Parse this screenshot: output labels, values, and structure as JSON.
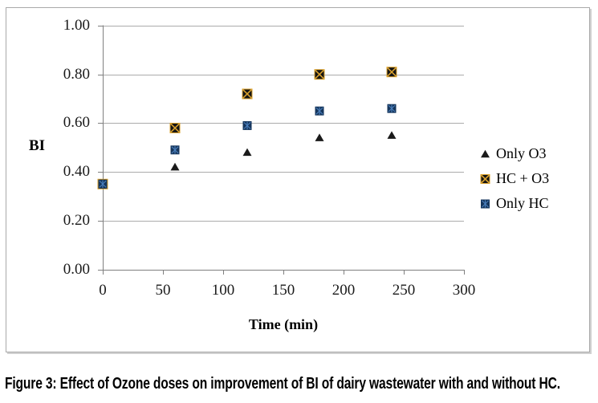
{
  "figure": {
    "caption": "Figure 3: Effect of Ozone doses on improvement of BI of dairy wastewater with and without HC."
  },
  "chart_data": {
    "type": "scatter",
    "x": [
      0,
      60,
      120,
      180,
      240
    ],
    "series": [
      {
        "name": "Only O3",
        "marker": "triangle",
        "fill": "#1a1a1a",
        "accent": "#1a1a1a",
        "values": [
          0.35,
          0.42,
          0.48,
          0.54,
          0.55
        ]
      },
      {
        "name": "HC + O3",
        "marker": "x-square",
        "fill": "#141414",
        "accent": "#D9A02C",
        "values": [
          0.35,
          0.58,
          0.72,
          0.8,
          0.81
        ]
      },
      {
        "name": "Only HC",
        "marker": "asterisk-square",
        "fill": "#16365C",
        "accent": "#4A7EBB",
        "values": [
          0.35,
          0.49,
          0.59,
          0.65,
          0.66
        ]
      }
    ],
    "xlabel": "Time (min)",
    "ylabel": "BI",
    "xlim": [
      0,
      300
    ],
    "ylim": [
      0.0,
      1.0
    ],
    "x_tick_values": [
      0,
      50,
      100,
      150,
      200,
      250,
      300
    ],
    "x_tick_labels": [
      "0",
      "50",
      "100",
      "150",
      "200",
      "250",
      "300"
    ],
    "y_tick_values": [
      0.0,
      0.2,
      0.4,
      0.6,
      0.8,
      1.0
    ],
    "y_tick_labels": [
      "0.00",
      "0.20",
      "0.40",
      "0.60",
      "0.80",
      "1.00"
    ],
    "grid": true,
    "legend_position": "right",
    "colors": {
      "gridline": "#ABABAB",
      "axis": "#7F7F7F",
      "text": "#000000",
      "background": "#FFFFFF"
    }
  }
}
